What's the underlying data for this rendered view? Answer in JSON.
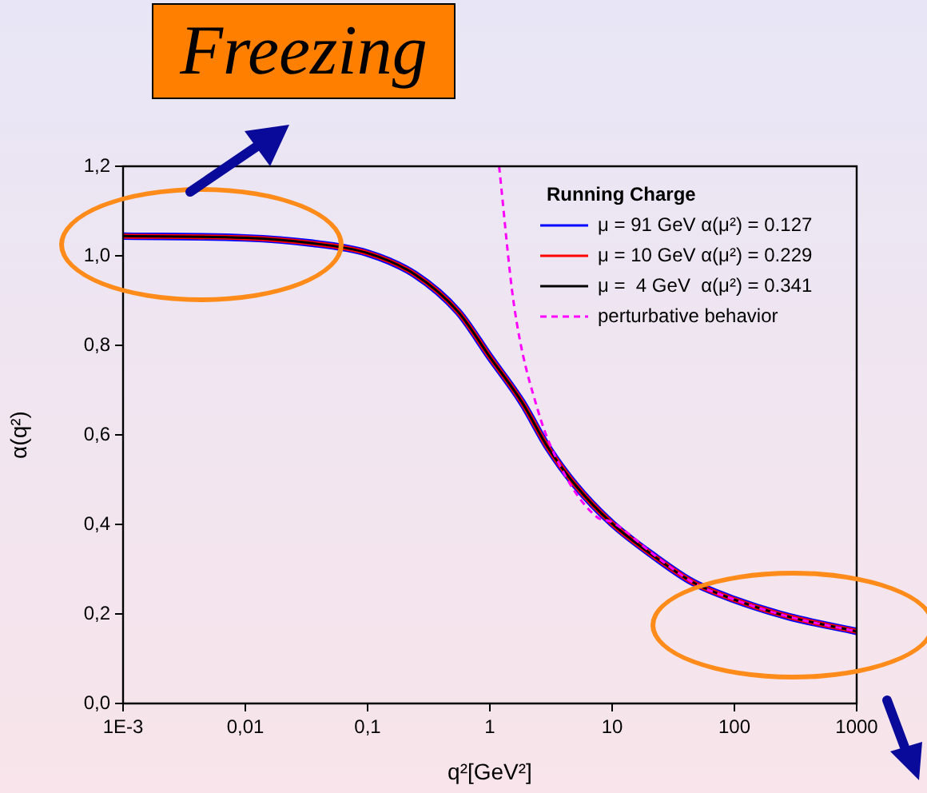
{
  "chart_data": {
    "type": "line",
    "xlabel": "q²[GeV²]",
    "ylabel": "α(q²)",
    "legend_title": "Running Charge",
    "legend": "top right",
    "marker": "none",
    "grid": false,
    "log": "x",
    "xlim": [
      0.001,
      1000
    ],
    "xticks": [
      {
        "value": 0.001,
        "label": "1E-3"
      },
      {
        "value": 0.01,
        "label": "0,01"
      },
      {
        "value": 0.1,
        "label": "0,1"
      },
      1,
      10,
      100,
      1000
    ],
    "ylim": [
      0,
      1.2
    ],
    "yticks": [
      {
        "value": 0,
        "label": "0,0"
      },
      {
        "value": 0.2,
        "label": "0,2"
      },
      {
        "value": 0.4,
        "label": "0,4"
      },
      {
        "value": 0.6,
        "label": "0,6"
      },
      {
        "value": 0.8,
        "label": "0,8"
      },
      {
        "value": 1,
        "label": "1,0"
      },
      {
        "value": 1.2,
        "label": "1,2"
      }
    ],
    "annotations": [
      "Freezing"
    ],
    "series": [
      {
        "name": "μ = 91 GeV α(μ²) = 0.127",
        "color": "#0000ff",
        "line_style": "solid",
        "x": [
          0.001,
          0.01,
          0.033,
          0.1,
          0.245,
          0.55,
          1,
          1.83,
          3,
          5,
          10,
          22.5,
          45.5,
          100,
          277,
          1000
        ],
        "values": [
          1.044,
          1.04,
          1.029,
          1.006,
          0.958,
          0.875,
          0.774,
          0.673,
          0.571,
          0.488,
          0.402,
          0.327,
          0.271,
          0.232,
          0.194,
          0.161
        ]
      },
      {
        "name": "μ = 10 GeV α(μ²) = 0.229",
        "color": "#ff0000",
        "line_style": "solid",
        "x": [
          0.001,
          0.01,
          0.033,
          0.1,
          0.245,
          0.55,
          1,
          1.83,
          3,
          5,
          10,
          22.5,
          45.5,
          100,
          277,
          1000
        ],
        "values": [
          1.044,
          1.04,
          1.029,
          1.006,
          0.958,
          0.875,
          0.774,
          0.673,
          0.571,
          0.488,
          0.402,
          0.327,
          0.271,
          0.232,
          0.194,
          0.161
        ]
      },
      {
        "name": "μ =  4 GeV  α(μ²) = 0.341",
        "color": "#000000",
        "line_style": "solid",
        "x": [
          0.001,
          0.01,
          0.033,
          0.1,
          0.245,
          0.55,
          1,
          1.83,
          3,
          5,
          10,
          22.5,
          45.5,
          100,
          277,
          1000
        ],
        "values": [
          1.044,
          1.04,
          1.029,
          1.006,
          0.958,
          0.875,
          0.774,
          0.673,
          0.571,
          0.488,
          0.402,
          0.327,
          0.271,
          0.232,
          0.194,
          0.161
        ]
      },
      {
        "name": "perturbative behavior",
        "color": "#ff00ff",
        "line_style": "dashed",
        "x": [
          1.19,
          1.57,
          2.47,
          4.08,
          7.46,
          10,
          22.5,
          45.5,
          100,
          277,
          1000
        ],
        "values": [
          1.2,
          0.893,
          0.655,
          0.512,
          0.417,
          0.405,
          0.33,
          0.271,
          0.232,
          0.194,
          0.161
        ]
      }
    ]
  }
}
